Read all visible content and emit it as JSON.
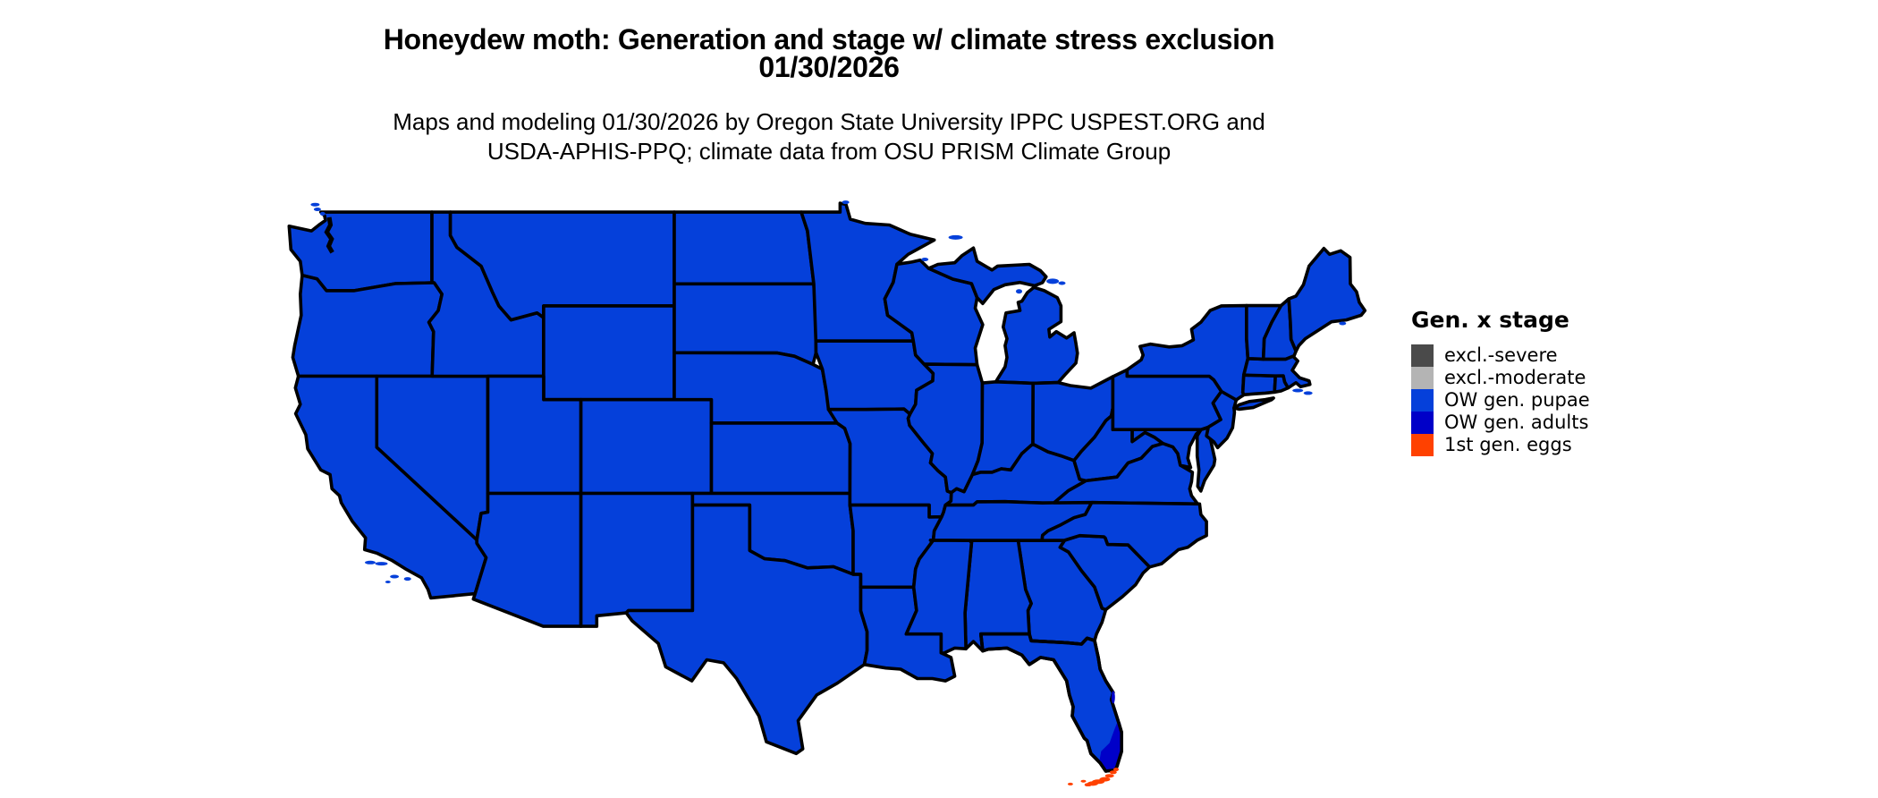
{
  "page": {
    "background": "#ffffff"
  },
  "title": {
    "line1": "Honeydew moth: Generation and stage w/ climate stress exclusion",
    "line2": "01/30/2026"
  },
  "subtitle": {
    "line1": "Maps and modeling 01/30/2026 by Oregon State University IPPC USPEST.ORG and",
    "line2": "USDA-APHIS-PPQ; climate data from OSU PRISM Climate Group"
  },
  "legend": {
    "title": "Gen. x stage",
    "items": [
      {
        "label": "excl.-severe",
        "color": "#4A4A4A"
      },
      {
        "label": "excl.-moderate",
        "color": "#B4B4B4"
      },
      {
        "label": "OW gen. pupae",
        "color": "#0540DA"
      },
      {
        "label": "OW gen. adults",
        "color": "#0000C8"
      },
      {
        "label": "1st gen. eggs",
        "color": "#FF4100"
      }
    ]
  },
  "map": {
    "region": "Contiguous United States",
    "border_color": "#000000",
    "fill_by_area": {
      "default": "OW gen. pupae",
      "south_florida_tip": "OW gen. adults",
      "florida_keys": "1st gen. eggs"
    }
  }
}
